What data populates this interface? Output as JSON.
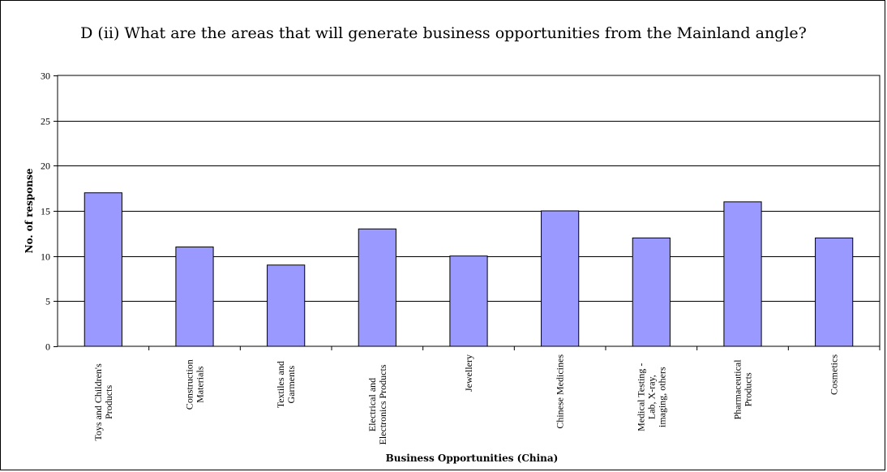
{
  "chart_data": {
    "type": "bar",
    "title": "D (ii) What are the areas that will generate business opportunities from the Mainland angle?",
    "xlabel": "Business Opportunities (China)",
    "ylabel": "No. of response",
    "ylim": [
      0,
      30
    ],
    "yticks": [
      0,
      5,
      10,
      15,
      20,
      25,
      30
    ],
    "grid": true,
    "categories": [
      [
        "Toys and Children's",
        "Products"
      ],
      [
        "Construction",
        "Materials"
      ],
      [
        "Textiles and",
        "Garments"
      ],
      [
        "Electrical and",
        "Electronics Products"
      ],
      [
        "Jewellery"
      ],
      [
        "Chinese Medicines"
      ],
      [
        "Medical Testing -",
        "Lab, X-ray,",
        "imaging, others"
      ],
      [
        "Pharmaceutical",
        "Products"
      ],
      [
        "Cosmetics"
      ]
    ],
    "values": [
      17,
      11,
      9,
      13,
      10,
      15,
      12,
      16,
      12
    ],
    "colors": {
      "bar": "#9999ff",
      "bar_stroke": "#000000"
    }
  }
}
